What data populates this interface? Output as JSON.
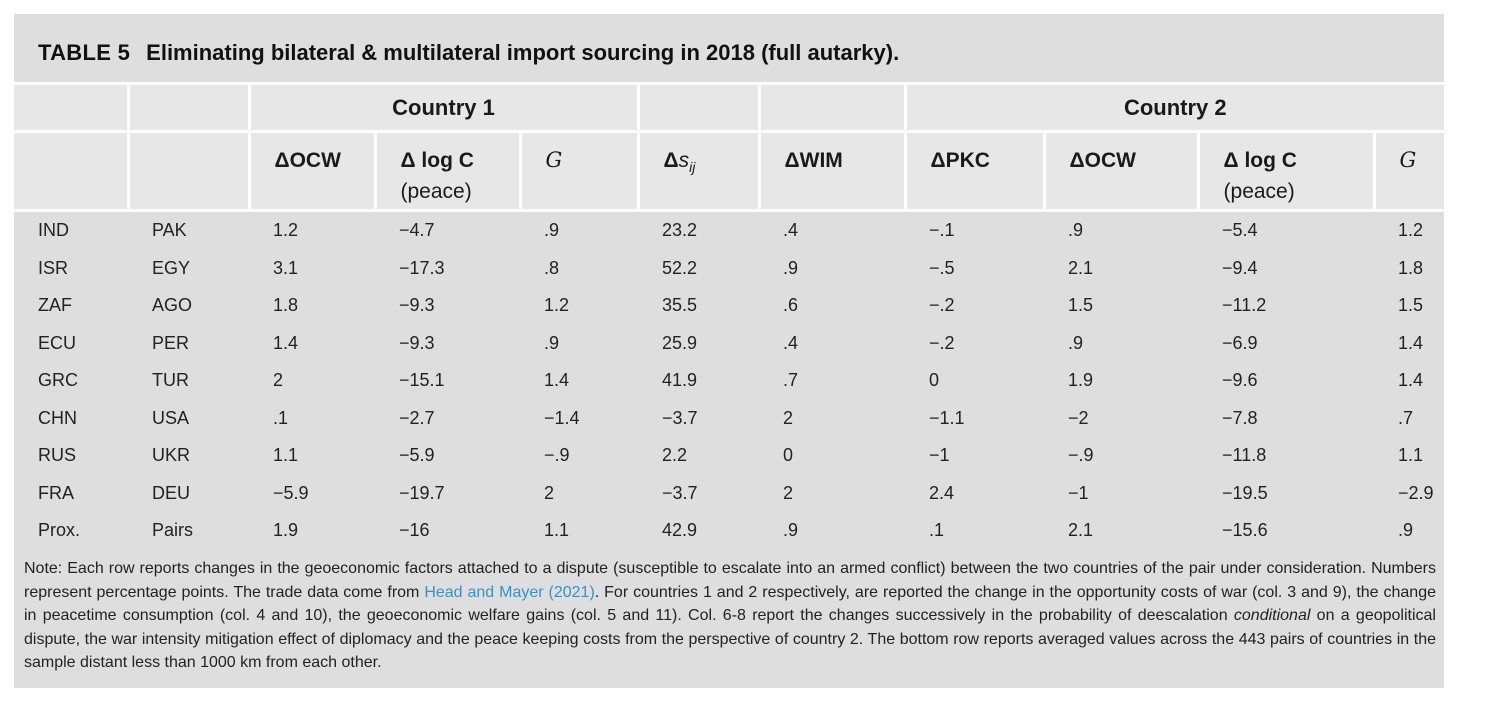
{
  "caption": {
    "label": "TABLE 5",
    "title": "Eliminating bilateral & multilateral import sourcing in 2018 (full autarky)."
  },
  "header": {
    "group1": "Country 1",
    "group2": "Country 2",
    "c1_ocw": "ΔOCW",
    "c1_dlogc": "Δ log C",
    "c1_dlogc_sub": "(peace)",
    "c1_g": "G",
    "ds_delta": "Δ",
    "ds_s": "s",
    "ds_sub": "ij",
    "dwim": "ΔWIM",
    "dpkc": "ΔPKC",
    "c2_ocw": "ΔOCW",
    "c2_dlogc": "Δ log C",
    "c2_dlogc_sub": "(peace)",
    "c2_g": "G"
  },
  "rows": [
    [
      "IND",
      "PAK",
      "1.2",
      "−4.7",
      ".9",
      "23.2",
      ".4",
      "−.1",
      ".9",
      "−5.4",
      "1.2"
    ],
    [
      "ISR",
      "EGY",
      "3.1",
      "−17.3",
      ".8",
      "52.2",
      ".9",
      "−.5",
      "2.1",
      "−9.4",
      "1.8"
    ],
    [
      "ZAF",
      "AGO",
      "1.8",
      "−9.3",
      "1.2",
      "35.5",
      ".6",
      "−.2",
      "1.5",
      "−11.2",
      "1.5"
    ],
    [
      "ECU",
      "PER",
      "1.4",
      "−9.3",
      ".9",
      "25.9",
      ".4",
      "−.2",
      ".9",
      "−6.9",
      "1.4"
    ],
    [
      "GRC",
      "TUR",
      "2",
      "−15.1",
      "1.4",
      "41.9",
      ".7",
      "0",
      "1.9",
      "−9.6",
      "1.4"
    ],
    [
      "CHN",
      "USA",
      ".1",
      "−2.7",
      "−1.4",
      "−3.7",
      "2",
      "−1.1",
      "−2",
      "−7.8",
      ".7"
    ],
    [
      "RUS",
      "UKR",
      "1.1",
      "−5.9",
      "−.9",
      "2.2",
      "0",
      "−1",
      "−.9",
      "−11.8",
      "1.1"
    ],
    [
      "FRA",
      "DEU",
      "−5.9",
      "−19.7",
      "2",
      "−3.7",
      "2",
      "2.4",
      "−1",
      "−19.5",
      "−2.9"
    ],
    [
      "Prox.",
      "Pairs",
      "1.9",
      "−16",
      "1.1",
      "42.9",
      ".9",
      ".1",
      "2.1",
      "−15.6",
      ".9"
    ]
  ],
  "note": {
    "part1": "Note: Each row reports changes in the geoeconomic factors attached to a dispute (susceptible to escalate into an armed conflict) between the two countries of the pair under consideration. Numbers represent percentage points. The trade data come from ",
    "link": "Head and Mayer (2021)",
    "part2": ". For countries 1 and 2 respectively, are reported the change in the opportunity costs of war (col. 3 and 9), the change in peacetime consumption (col. 4 and 10), the geoeconomic welfare gains (col. 5 and 11). Col. 6-8 report the changes successively in the probability of deescalation ",
    "emph": "conditional",
    "part3": " on a geopolitical dispute, the war intensity mitigation effect of diplomacy and the peace keeping costs from the perspective of country 2. The bottom row reports averaged values across the 443 pairs of countries in the sample distant less than 1000 km from each other."
  }
}
